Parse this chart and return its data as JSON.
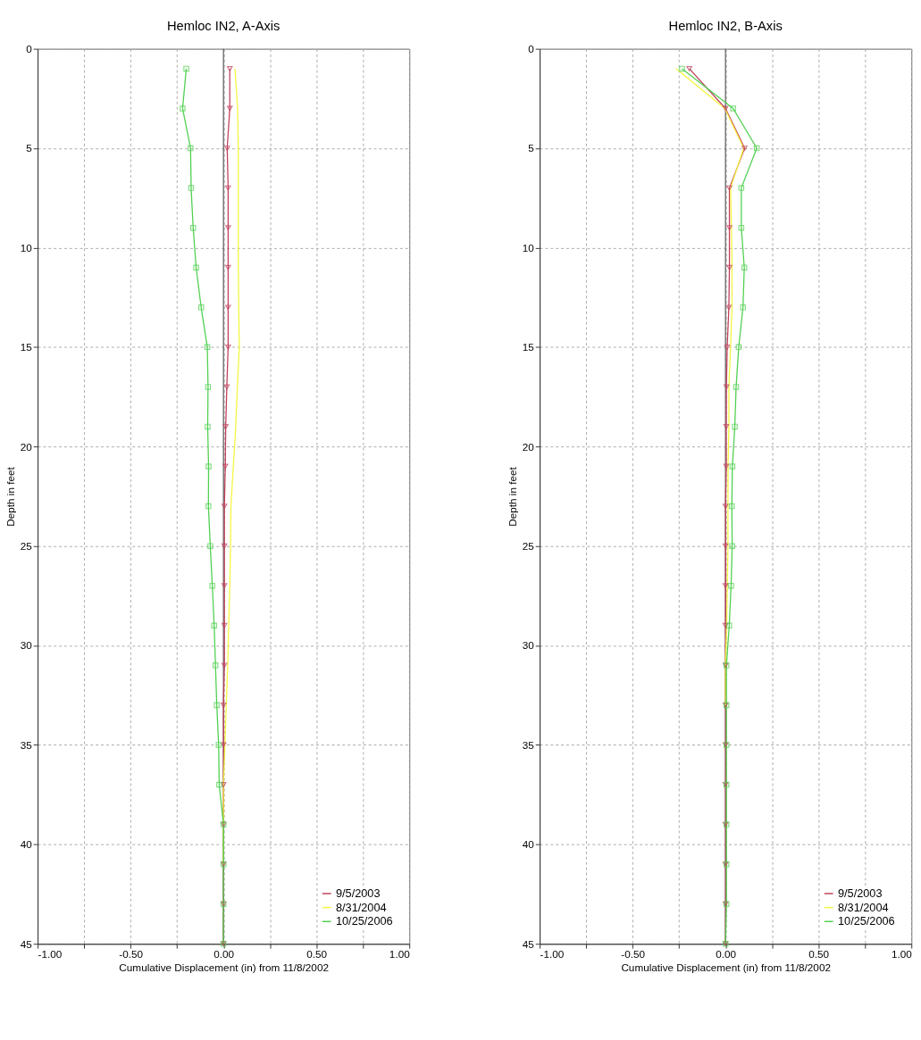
{
  "chart_data": [
    {
      "type": "line",
      "title": "Hemloc IN2, A-Axis",
      "xlabel": "Cumulative Displacement (in) from 11/8/2002",
      "ylabel": "Depth in feet",
      "orientation": "horizontal",
      "x": [
        1,
        3,
        5,
        7,
        9,
        11,
        13,
        15,
        17,
        19,
        21,
        23,
        25,
        27,
        29,
        31,
        33,
        35,
        37,
        39,
        41,
        43,
        45
      ],
      "series": [
        {
          "name": "9/5/2003",
          "color": "#c0405a",
          "marker": "triangle",
          "values": [
            0.034,
            0.034,
            0.02,
            0.025,
            0.025,
            0.025,
            0.025,
            0.025,
            0.018,
            0.012,
            0.01,
            0.005,
            0.005,
            0.005,
            0.005,
            0.005,
            0,
            0,
            0,
            0,
            0,
            0,
            0
          ]
        },
        {
          "name": "8/31/2004",
          "color": "#f5f540",
          "marker": "none",
          "values": [
            0.062,
            0.076,
            0.08,
            0.08,
            0.08,
            0.08,
            0.082,
            0.085,
            0.075,
            0.066,
            0.053,
            0.04,
            0.038,
            0.034,
            0.028,
            0.023,
            0.015,
            0.008,
            0,
            0,
            0,
            null,
            null
          ]
        },
        {
          "name": "10/25/2006",
          "color": "#50d050",
          "marker": "square",
          "values": [
            -0.2,
            -0.22,
            -0.177,
            -0.174,
            -0.163,
            -0.147,
            -0.12,
            -0.087,
            -0.083,
            -0.085,
            -0.08,
            -0.081,
            -0.071,
            -0.06,
            -0.05,
            -0.043,
            -0.036,
            -0.026,
            -0.023,
            0,
            0,
            0,
            0
          ]
        }
      ],
      "xlim": [
        -1,
        1
      ],
      "xticks": [
        {
          "value": -1,
          "label": "-1.00"
        },
        {
          "value": -0.75,
          "label": null
        },
        {
          "value": -0.5,
          "label": "-0.50"
        },
        {
          "value": -0.25,
          "label": null
        },
        {
          "value": 0,
          "label": "0.00"
        },
        {
          "value": 0.25,
          "label": null
        },
        {
          "value": 0.5,
          "label": "0.50"
        },
        {
          "value": 0.75,
          "label": null
        },
        {
          "value": 1,
          "label": "1.00"
        }
      ],
      "ylim": [
        45,
        0
      ],
      "yticks": [
        0,
        5,
        10,
        15,
        20,
        25,
        30,
        35,
        40,
        45
      ],
      "ref_lines": [
        {
          "axis": "x",
          "value": 0,
          "color": "#555555"
        }
      ],
      "grid": true,
      "legend": "bottom right",
      "line_style": "solid"
    },
    {
      "type": "line",
      "title": "Hemloc IN2, B-Axis",
      "xlabel": "Cumulative Displacement (in) from 11/8/2002",
      "ylabel": "Depth in feet",
      "orientation": "horizontal",
      "x": [
        1,
        3,
        5,
        7,
        9,
        11,
        13,
        15,
        17,
        19,
        21,
        23,
        25,
        27,
        29,
        31,
        33,
        35,
        37,
        39,
        41,
        43,
        45
      ],
      "series": [
        {
          "name": "9/5/2003",
          "color": "#c0405a",
          "marker": "triangle",
          "values": [
            -0.195,
            0,
            0.103,
            0.021,
            0.021,
            0.021,
            0.018,
            0.009,
            0.005,
            0.004,
            0.004,
            0,
            0,
            0,
            0,
            0,
            0,
            0,
            0,
            0,
            0,
            0,
            0
          ]
        },
        {
          "name": "8/31/2004",
          "color": "#f5f540",
          "marker": "none",
          "values": [
            -0.266,
            -0.004,
            0.098,
            0.027,
            0.032,
            0.035,
            0.035,
            0.027,
            0.018,
            0.018,
            0.014,
            0.013,
            0.013,
            0.01,
            0.006,
            0,
            0,
            null,
            null,
            null,
            null,
            null,
            null
          ]
        },
        {
          "name": "10/25/2006",
          "color": "#50d050",
          "marker": "square",
          "values": [
            -0.234,
            0.041,
            0.168,
            0.085,
            0.085,
            0.101,
            0.094,
            0.071,
            0.057,
            0.05,
            0.037,
            0.034,
            0.036,
            0.03,
            0.02,
            0.005,
            0.005,
            0.005,
            0.005,
            0.005,
            0.005,
            0.005,
            0
          ]
        }
      ],
      "xlim": [
        -1,
        1
      ],
      "xticks": [
        {
          "value": -1,
          "label": "-1.00"
        },
        {
          "value": -0.75,
          "label": null
        },
        {
          "value": -0.5,
          "label": "-0.50"
        },
        {
          "value": -0.25,
          "label": null
        },
        {
          "value": 0,
          "label": "0.00"
        },
        {
          "value": 0.25,
          "label": null
        },
        {
          "value": 0.5,
          "label": "0.50"
        },
        {
          "value": 0.75,
          "label": null
        },
        {
          "value": 1,
          "label": "1.00"
        }
      ],
      "ylim": [
        45,
        0
      ],
      "yticks": [
        0,
        5,
        10,
        15,
        20,
        25,
        30,
        35,
        40,
        45
      ],
      "ref_lines": [
        {
          "axis": "x",
          "value": 0,
          "color": "#555555"
        }
      ],
      "grid": true,
      "legend": "bottom right",
      "line_style": "solid"
    }
  ]
}
